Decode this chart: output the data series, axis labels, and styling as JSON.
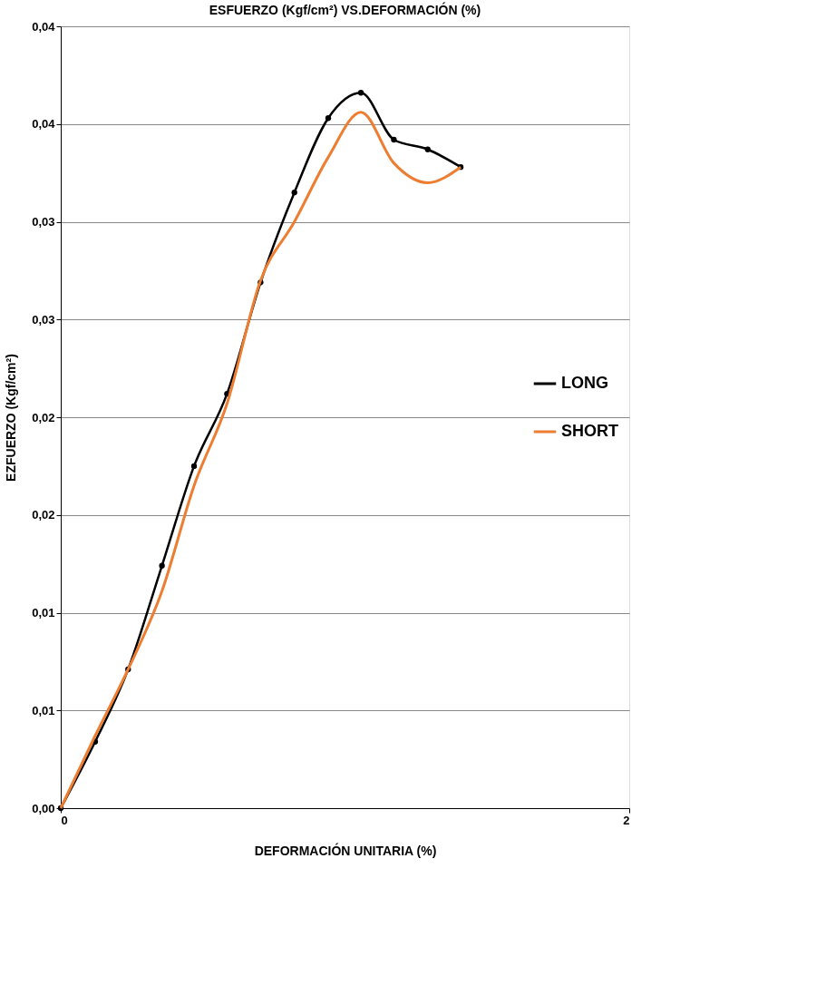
{
  "chart_data": {
    "type": "line",
    "title": "ESFUERZO (Kgf/cm²) VS.DEFORMACIÓN (%)",
    "xlabel": "DEFORMACIÓN UNITARIA (%)",
    "ylabel": "EZFUERZO (Kgf/cm²)",
    "xlim": [
      0,
      2
    ],
    "xticks": [
      0,
      2
    ],
    "ylim": [
      0,
      0.04
    ],
    "yticks": [
      {
        "value": 0,
        "label": "0,00"
      },
      {
        "value": 0.005,
        "label": "0,01"
      },
      {
        "value": 0.01,
        "label": "0,01"
      },
      {
        "value": 0.015,
        "label": "0,02"
      },
      {
        "value": 0.02,
        "label": "0,02"
      },
      {
        "value": 0.025,
        "label": "0,03"
      },
      {
        "value": 0.03,
        "label": "0,03"
      },
      {
        "value": 0.035,
        "label": "0,04"
      },
      {
        "value": 0.04,
        "label": "0,04"
      }
    ],
    "grid": "y",
    "legend": "right",
    "series": [
      {
        "name": "LONG",
        "color": "#000000",
        "marker": "circle",
        "x": [
          0,
          0.121,
          0.237,
          0.356,
          0.469,
          0.585,
          0.703,
          0.822,
          0.941,
          1.056,
          1.172,
          1.291,
          1.407
        ],
        "values": [
          0,
          0.0034,
          0.0071,
          0.0124,
          0.0175,
          0.0212,
          0.0269,
          0.0315,
          0.0353,
          0.0366,
          0.0342,
          0.0337,
          0.0328
        ]
      },
      {
        "name": "SHORT",
        "color": "#ed7d31",
        "marker": "none",
        "x": [
          0,
          0.121,
          0.237,
          0.356,
          0.469,
          0.585,
          0.703,
          0.822,
          0.941,
          1.056,
          1.172,
          1.291,
          1.407
        ],
        "values": [
          0,
          0.0037,
          0.0071,
          0.0111,
          0.0165,
          0.0207,
          0.027,
          0.03,
          0.0333,
          0.0356,
          0.033,
          0.032,
          0.0328
        ]
      }
    ]
  }
}
